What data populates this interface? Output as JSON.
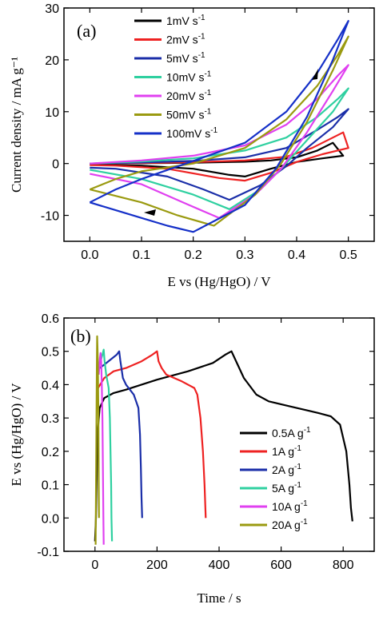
{
  "chart_data": [
    {
      "type": "line",
      "panel_label": "(a)",
      "xlabel": "E vs (Hg/HgO) / V",
      "ylabel": "Current density / mA g⁻¹",
      "xlim": [
        -0.05,
        0.55
      ],
      "ylim": [
        -15,
        30
      ],
      "xticks": [
        "0.0",
        "0.1",
        "0.2",
        "0.3",
        "0.4",
        "0.5"
      ],
      "xtick_values": [
        0.0,
        0.1,
        0.2,
        0.3,
        0.4,
        0.5
      ],
      "yticks": [
        "-10",
        "0",
        "10",
        "20",
        "30"
      ],
      "ytick_values": [
        -10,
        0,
        10,
        20,
        30
      ],
      "legend_position": "top-left",
      "series": [
        {
          "name": "1mV s⁻¹",
          "legend_main": "1mV s",
          "legend_sup": "-1",
          "color": "#000000",
          "anodic": [
            [
              0.0,
              0.0
            ],
            [
              0.1,
              0.05
            ],
            [
              0.2,
              0.15
            ],
            [
              0.3,
              0.35
            ],
            [
              0.35,
              0.6
            ],
            [
              0.4,
              1.2
            ],
            [
              0.44,
              2.5
            ],
            [
              0.47,
              4.0
            ],
            [
              0.49,
              1.5
            ]
          ],
          "cathodic": [
            [
              0.49,
              1.5
            ],
            [
              0.45,
              1.0
            ],
            [
              0.4,
              0.3
            ],
            [
              0.35,
              -1.0
            ],
            [
              0.3,
              -2.5
            ],
            [
              0.27,
              -2.2
            ],
            [
              0.2,
              -1.0
            ],
            [
              0.1,
              -0.4
            ],
            [
              0.0,
              -0.2
            ]
          ]
        },
        {
          "name": "2mV s⁻¹",
          "legend_main": "2mV s",
          "legend_sup": "-1",
          "color": "#ee2222",
          "anodic": [
            [
              0.0,
              0.0
            ],
            [
              0.1,
              0.1
            ],
            [
              0.2,
              0.25
            ],
            [
              0.3,
              0.6
            ],
            [
              0.38,
              1.3
            ],
            [
              0.43,
              3.0
            ],
            [
              0.47,
              5.0
            ],
            [
              0.49,
              6.0
            ],
            [
              0.5,
              3.0
            ]
          ],
          "cathodic": [
            [
              0.5,
              3.0
            ],
            [
              0.45,
              1.8
            ],
            [
              0.4,
              0.3
            ],
            [
              0.35,
              -1.8
            ],
            [
              0.3,
              -3.3
            ],
            [
              0.25,
              -2.8
            ],
            [
              0.15,
              -1.0
            ],
            [
              0.05,
              -0.4
            ],
            [
              0.0,
              -0.3
            ]
          ]
        },
        {
          "name": "5mV s⁻¹",
          "legend_main": "5mV s",
          "legend_sup": "-1",
          "color": "#1a2ea8",
          "anodic": [
            [
              0.0,
              0.0
            ],
            [
              0.1,
              0.2
            ],
            [
              0.2,
              0.5
            ],
            [
              0.3,
              1.2
            ],
            [
              0.38,
              3.0
            ],
            [
              0.44,
              6.5
            ],
            [
              0.48,
              9.0
            ],
            [
              0.5,
              10.5
            ]
          ],
          "cathodic": [
            [
              0.5,
              10.5
            ],
            [
              0.47,
              7.0
            ],
            [
              0.42,
              3.0
            ],
            [
              0.38,
              -0.5
            ],
            [
              0.33,
              -4.2
            ],
            [
              0.27,
              -7.0
            ],
            [
              0.22,
              -5.0
            ],
            [
              0.15,
              -2.5
            ],
            [
              0.05,
              -1.0
            ],
            [
              0.0,
              -0.8
            ]
          ]
        },
        {
          "name": "10mV s⁻¹",
          "legend_main": "10mV s",
          "legend_sup": "-1",
          "color": "#2fd0a0",
          "anodic": [
            [
              0.0,
              0.0
            ],
            [
              0.1,
              0.4
            ],
            [
              0.2,
              1.0
            ],
            [
              0.3,
              2.5
            ],
            [
              0.38,
              5.0
            ],
            [
              0.44,
              9.0
            ],
            [
              0.48,
              12.5
            ],
            [
              0.5,
              14.5
            ]
          ],
          "cathodic": [
            [
              0.5,
              14.5
            ],
            [
              0.47,
              10.0
            ],
            [
              0.42,
              4.5
            ],
            [
              0.37,
              -1.0
            ],
            [
              0.33,
              -5.0
            ],
            [
              0.27,
              -8.8
            ],
            [
              0.2,
              -6.0
            ],
            [
              0.1,
              -3.0
            ],
            [
              0.0,
              -1.2
            ]
          ]
        },
        {
          "name": "20mV s⁻¹",
          "legend_main": "20mV s",
          "legend_sup": "-1",
          "color": "#e040f0",
          "anodic": [
            [
              0.0,
              0.0
            ],
            [
              0.1,
              0.6
            ],
            [
              0.2,
              1.5
            ],
            [
              0.3,
              3.5
            ],
            [
              0.38,
              7.5
            ],
            [
              0.44,
              12.5
            ],
            [
              0.48,
              17.0
            ],
            [
              0.5,
              19.0
            ]
          ],
          "cathodic": [
            [
              0.5,
              19.0
            ],
            [
              0.47,
              14.0
            ],
            [
              0.42,
              6.0
            ],
            [
              0.37,
              -1.0
            ],
            [
              0.32,
              -6.0
            ],
            [
              0.25,
              -10.5
            ],
            [
              0.18,
              -7.5
            ],
            [
              0.1,
              -4.0
            ],
            [
              0.0,
              -2.0
            ]
          ]
        },
        {
          "name": "50mV s⁻¹",
          "legend_main": "50mV s",
          "legend_sup": "-1",
          "color": "#9a9a10",
          "anodic": [
            [
              0.0,
              -5.0
            ],
            [
              0.05,
              -3.0
            ],
            [
              0.1,
              -1.5
            ],
            [
              0.2,
              0.0
            ],
            [
              0.3,
              3.0
            ],
            [
              0.38,
              8.5
            ],
            [
              0.44,
              15.0
            ],
            [
              0.48,
              21.0
            ],
            [
              0.5,
              24.5
            ]
          ],
          "cathodic": [
            [
              0.5,
              24.5
            ],
            [
              0.47,
              18.0
            ],
            [
              0.42,
              8.0
            ],
            [
              0.37,
              0.0
            ],
            [
              0.32,
              -6.0
            ],
            [
              0.24,
              -12.0
            ],
            [
              0.17,
              -10.0
            ],
            [
              0.1,
              -7.5
            ],
            [
              0.0,
              -5.0
            ]
          ]
        },
        {
          "name": "100mV s⁻¹",
          "legend_main": "100mV s",
          "legend_sup": "-1",
          "color": "#1530c8",
          "anodic": [
            [
              0.0,
              -7.5
            ],
            [
              0.05,
              -5.0
            ],
            [
              0.1,
              -3.0
            ],
            [
              0.2,
              0.5
            ],
            [
              0.3,
              4.0
            ],
            [
              0.38,
              10.0
            ],
            [
              0.44,
              17.5
            ],
            [
              0.48,
              24.0
            ],
            [
              0.5,
              27.5
            ]
          ],
          "cathodic": [
            [
              0.5,
              27.5
            ],
            [
              0.47,
              20.0
            ],
            [
              0.42,
              9.0
            ],
            [
              0.36,
              -1.0
            ],
            [
              0.3,
              -8.0
            ],
            [
              0.2,
              -13.2
            ],
            [
              0.15,
              -12.0
            ],
            [
              0.1,
              -10.5
            ],
            [
              0.05,
              -9.0
            ],
            [
              0.0,
              -7.5
            ]
          ]
        }
      ]
    },
    {
      "type": "line",
      "panel_label": "(b)",
      "xlabel": "Time / s",
      "ylabel": "E vs (Hg/HgO) / V",
      "xlim": [
        -100,
        900
      ],
      "ylim": [
        -0.1,
        0.6
      ],
      "xticks": [
        "0",
        "200",
        "400",
        "600",
        "800"
      ],
      "xtick_values": [
        0,
        200,
        400,
        600,
        800
      ],
      "yticks": [
        "-0.1",
        "0.0",
        "0.1",
        "0.2",
        "0.3",
        "0.4",
        "0.5",
        "0.6"
      ],
      "ytick_values": [
        -0.1,
        0.0,
        0.1,
        0.2,
        0.3,
        0.4,
        0.5,
        0.6
      ],
      "legend_position": "bottom-right",
      "series": [
        {
          "name": "0.5A g⁻¹",
          "legend_main": "0.5A g",
          "legend_sup": "-1",
          "color": "#000000",
          "points": [
            [
              0,
              -0.07
            ],
            [
              3,
              0.0
            ],
            [
              8,
              0.25
            ],
            [
              15,
              0.33
            ],
            [
              30,
              0.36
            ],
            [
              60,
              0.375
            ],
            [
              100,
              0.385
            ],
            [
              200,
              0.415
            ],
            [
              300,
              0.44
            ],
            [
              380,
              0.465
            ],
            [
              420,
              0.49
            ],
            [
              440,
              0.5
            ],
            [
              450,
              0.48
            ],
            [
              480,
              0.42
            ],
            [
              520,
              0.37
            ],
            [
              560,
              0.35
            ],
            [
              650,
              0.33
            ],
            [
              720,
              0.315
            ],
            [
              760,
              0.305
            ],
            [
              790,
              0.28
            ],
            [
              810,
              0.2
            ],
            [
              820,
              0.1
            ],
            [
              825,
              0.03
            ],
            [
              830,
              -0.01
            ]
          ]
        },
        {
          "name": "1A g⁻¹",
          "legend_main": "1A g",
          "legend_sup": "-1",
          "color": "#ee2222",
          "points": [
            [
              10,
              0.39
            ],
            [
              30,
              0.42
            ],
            [
              60,
              0.44
            ],
            [
              100,
              0.45
            ],
            [
              150,
              0.47
            ],
            [
              185,
              0.49
            ],
            [
              200,
              0.5
            ],
            [
              205,
              0.47
            ],
            [
              215,
              0.45
            ],
            [
              230,
              0.43
            ],
            [
              280,
              0.41
            ],
            [
              320,
              0.39
            ],
            [
              330,
              0.37
            ],
            [
              340,
              0.3
            ],
            [
              348,
              0.2
            ],
            [
              353,
              0.1
            ],
            [
              357,
              0.0
            ]
          ]
        },
        {
          "name": "2A g⁻¹",
          "legend_main": "2A g",
          "legend_sup": "-1",
          "color": "#1a2ea8",
          "points": [
            [
              15,
              0.45
            ],
            [
              30,
              0.46
            ],
            [
              50,
              0.475
            ],
            [
              70,
              0.49
            ],
            [
              78,
              0.5
            ],
            [
              82,
              0.47
            ],
            [
              90,
              0.42
            ],
            [
              100,
              0.4
            ],
            [
              125,
              0.37
            ],
            [
              140,
              0.33
            ],
            [
              145,
              0.25
            ],
            [
              148,
              0.15
            ],
            [
              150,
              0.06
            ],
            [
              152,
              0.0
            ]
          ]
        },
        {
          "name": "5A g⁻¹",
          "legend_main": "5A g",
          "legend_sup": "-1",
          "color": "#2fd0a0",
          "points": [
            [
              18,
              0.47
            ],
            [
              24,
              0.49
            ],
            [
              28,
              0.505
            ],
            [
              31,
              0.47
            ],
            [
              36,
              0.43
            ],
            [
              44,
              0.39
            ],
            [
              48,
              0.3
            ],
            [
              50,
              0.2
            ],
            [
              52,
              0.1
            ],
            [
              53,
              0.0
            ],
            [
              55,
              -0.07
            ]
          ]
        },
        {
          "name": "10A g⁻¹",
          "legend_main": "10A g",
          "legend_sup": "-1",
          "color": "#e040f0",
          "points": [
            [
              12,
              0.43
            ],
            [
              16,
              0.48
            ],
            [
              18,
              0.495
            ],
            [
              20,
              0.47
            ],
            [
              22,
              0.4
            ],
            [
              24,
              0.3
            ],
            [
              25,
              0.2
            ],
            [
              26,
              0.1
            ],
            [
              27,
              0.0
            ],
            [
              28,
              -0.08
            ]
          ]
        },
        {
          "name": "20A g⁻¹",
          "legend_main": "20A g",
          "legend_sup": "-1",
          "color": "#9a9a10",
          "points": [
            [
              2,
              -0.08
            ],
            [
              4,
              0.2
            ],
            [
              6,
              0.45
            ],
            [
              7,
              0.545
            ],
            [
              9,
              0.48
            ],
            [
              11,
              0.3
            ],
            [
              12,
              0.1
            ],
            [
              13,
              0.0
            ]
          ]
        }
      ]
    }
  ]
}
